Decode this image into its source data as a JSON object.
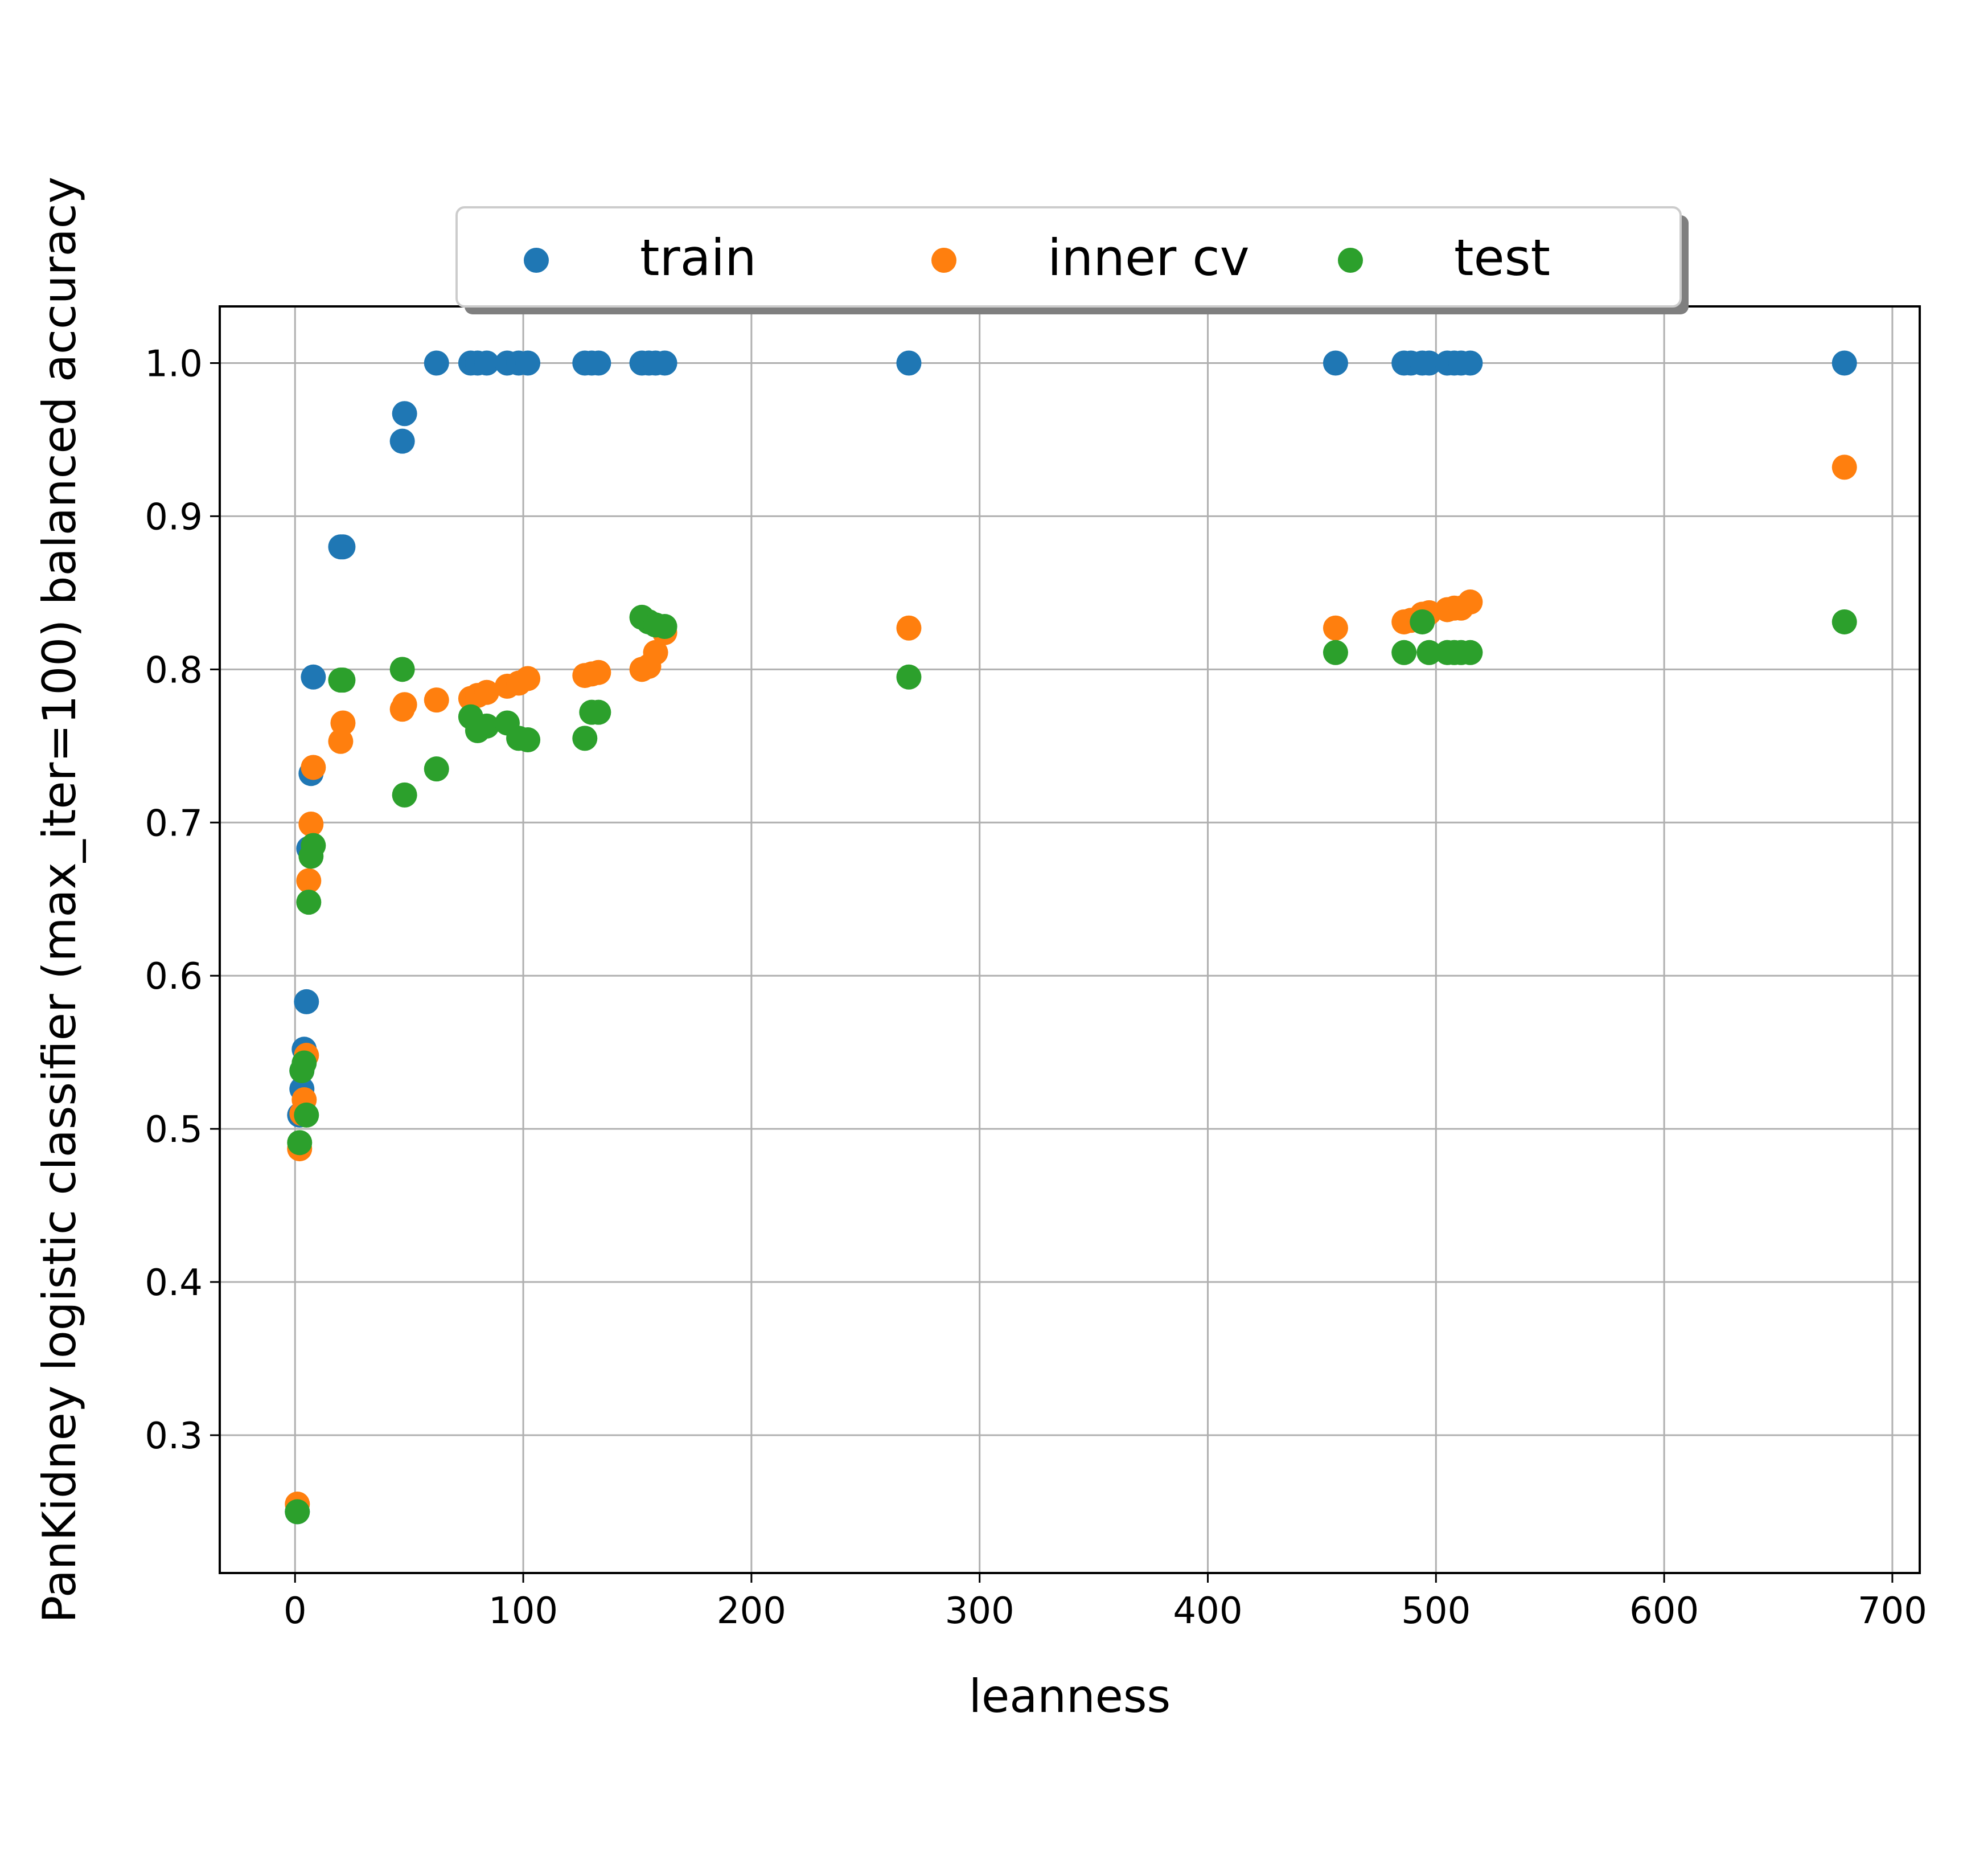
{
  "chart_data": {
    "type": "scatter",
    "xlabel": "leanness",
    "ylabel": "PanKidney logistic classifier (max_iter=100) balanced accuracy",
    "xlim": [
      -33,
      712
    ],
    "ylim": [
      0.21,
      1.037
    ],
    "xticks": [
      "0",
      "100",
      "200",
      "300",
      "400",
      "500",
      "600",
      "700"
    ],
    "yticks": [
      "0.3",
      "0.4",
      "0.5",
      "0.6",
      "0.7",
      "0.8",
      "0.9",
      "1.0"
    ],
    "grid": true,
    "legend_position": "top-center",
    "series": [
      {
        "name": "train",
        "color": "#1f77b4",
        "points": [
          [
            1,
            0.25
          ],
          [
            2,
            0.509
          ],
          [
            3,
            0.526
          ],
          [
            3,
            0.538
          ],
          [
            4,
            0.552
          ],
          [
            5,
            0.583
          ],
          [
            6,
            0.683
          ],
          [
            7,
            0.732
          ],
          [
            8,
            0.795
          ],
          [
            20,
            0.88
          ],
          [
            21,
            0.88
          ],
          [
            47,
            0.949
          ],
          [
            48,
            0.967
          ],
          [
            62,
            1.0
          ],
          [
            77,
            1.0
          ],
          [
            80,
            1.0
          ],
          [
            84,
            1.0
          ],
          [
            93,
            1.0
          ],
          [
            98,
            1.0
          ],
          [
            102,
            1.0
          ],
          [
            127,
            1.0
          ],
          [
            130,
            1.0
          ],
          [
            133,
            1.0
          ],
          [
            152,
            1.0
          ],
          [
            155,
            1.0
          ],
          [
            158,
            1.0
          ],
          [
            162,
            1.0
          ],
          [
            269,
            1.0
          ],
          [
            456,
            1.0
          ],
          [
            486,
            1.0
          ],
          [
            489,
            1.0
          ],
          [
            494,
            1.0
          ],
          [
            497,
            1.0
          ],
          [
            505,
            1.0
          ],
          [
            508,
            1.0
          ],
          [
            511,
            1.0
          ],
          [
            515,
            1.0
          ],
          [
            679,
            1.0
          ]
        ]
      },
      {
        "name": "inner cv",
        "color": "#ff7f0e",
        "points": [
          [
            1,
            0.255
          ],
          [
            2,
            0.487
          ],
          [
            3,
            0.51
          ],
          [
            4,
            0.519
          ],
          [
            5,
            0.548
          ],
          [
            6,
            0.662
          ],
          [
            7,
            0.699
          ],
          [
            8,
            0.736
          ],
          [
            20,
            0.753
          ],
          [
            21,
            0.765
          ],
          [
            47,
            0.774
          ],
          [
            48,
            0.777
          ],
          [
            62,
            0.78
          ],
          [
            77,
            0.781
          ],
          [
            80,
            0.783
          ],
          [
            84,
            0.785
          ],
          [
            93,
            0.789
          ],
          [
            98,
            0.791
          ],
          [
            102,
            0.794
          ],
          [
            127,
            0.796
          ],
          [
            130,
            0.797
          ],
          [
            133,
            0.798
          ],
          [
            152,
            0.8
          ],
          [
            155,
            0.802
          ],
          [
            158,
            0.811
          ],
          [
            162,
            0.824
          ],
          [
            269,
            0.827
          ],
          [
            456,
            0.827
          ],
          [
            486,
            0.831
          ],
          [
            489,
            0.832
          ],
          [
            494,
            0.836
          ],
          [
            497,
            0.837
          ],
          [
            505,
            0.839
          ],
          [
            508,
            0.84
          ],
          [
            511,
            0.84
          ],
          [
            515,
            0.844
          ],
          [
            679,
            0.932
          ]
        ]
      },
      {
        "name": "test",
        "color": "#2ca02c",
        "points": [
          [
            1,
            0.25
          ],
          [
            2,
            0.491
          ],
          [
            3,
            0.538
          ],
          [
            4,
            0.543
          ],
          [
            5,
            0.509
          ],
          [
            6,
            0.648
          ],
          [
            7,
            0.678
          ],
          [
            8,
            0.685
          ],
          [
            20,
            0.793
          ],
          [
            21,
            0.793
          ],
          [
            47,
            0.8
          ],
          [
            48,
            0.718
          ],
          [
            62,
            0.735
          ],
          [
            77,
            0.769
          ],
          [
            80,
            0.76
          ],
          [
            84,
            0.763
          ],
          [
            93,
            0.765
          ],
          [
            98,
            0.755
          ],
          [
            102,
            0.754
          ],
          [
            127,
            0.755
          ],
          [
            130,
            0.772
          ],
          [
            133,
            0.772
          ],
          [
            152,
            0.834
          ],
          [
            155,
            0.831
          ],
          [
            158,
            0.829
          ],
          [
            162,
            0.828
          ],
          [
            269,
            0.795
          ],
          [
            456,
            0.811
          ],
          [
            486,
            0.811
          ],
          [
            494,
            0.831
          ],
          [
            497,
            0.811
          ],
          [
            505,
            0.811
          ],
          [
            508,
            0.811
          ],
          [
            511,
            0.811
          ],
          [
            515,
            0.811
          ],
          [
            679,
            0.831
          ]
        ]
      }
    ]
  }
}
